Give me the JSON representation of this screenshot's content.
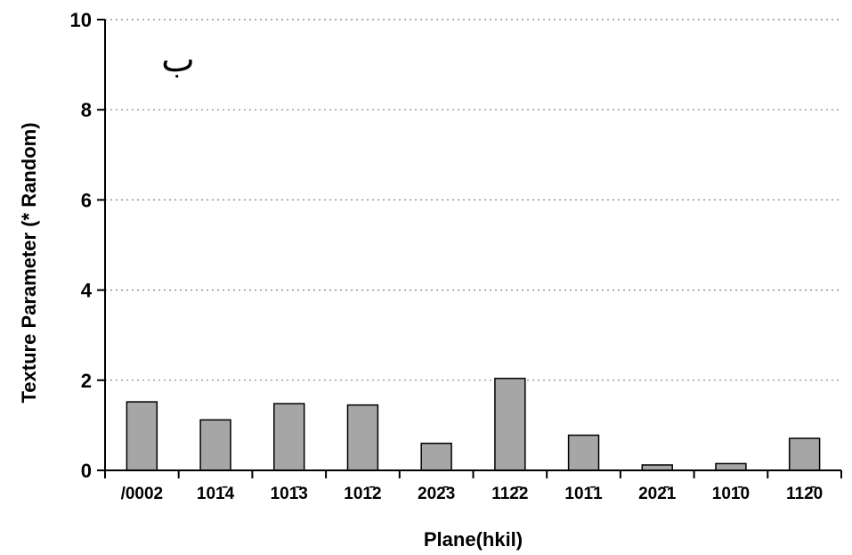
{
  "chart_data": {
    "type": "bar",
    "categories": [
      "/0002",
      "101̄4",
      "101̄3",
      "101̄2",
      "202̄3",
      "112̄2",
      "101̄1",
      "202̄1",
      "101̄0",
      "112̄0"
    ],
    "values": [
      1.52,
      1.12,
      1.48,
      1.45,
      0.6,
      2.04,
      0.78,
      0.12,
      0.15,
      0.71
    ],
    "title": "",
    "xlabel": "Plane(hkil)",
    "ylabel": "Texture Parameter (* Random)",
    "ylim": [
      0,
      10
    ],
    "yticks": [
      0,
      2,
      4,
      6,
      8,
      10
    ],
    "ytick_labels": [
      "0",
      "2",
      "4",
      "6",
      "8",
      "10"
    ],
    "grid": "horizontal dotted",
    "legend": "none",
    "annotation": "ب",
    "bar_color": "#a6a6a6",
    "bar_edge_color": "#000000",
    "grid_color": "#808080"
  }
}
